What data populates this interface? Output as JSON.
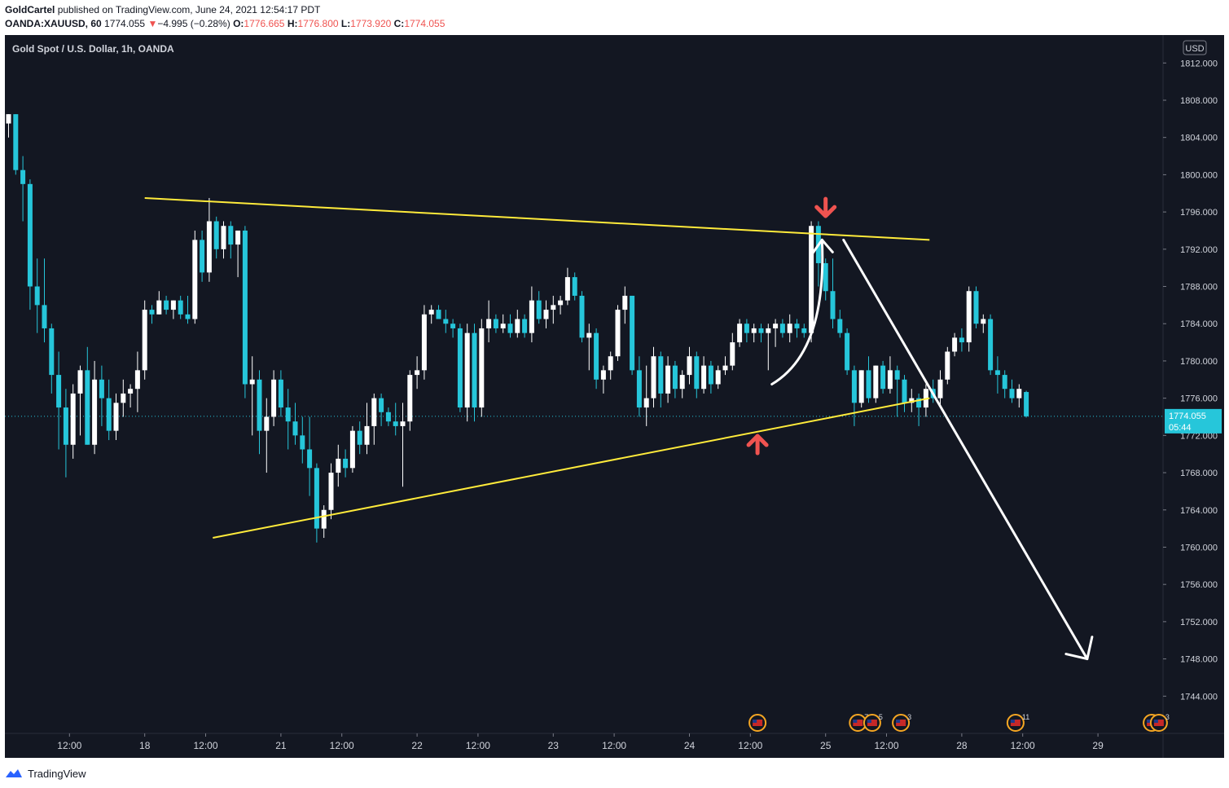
{
  "header": {
    "author": "GoldCartel",
    "published_text": "published on TradingView.com, June 24, 2021 12:54:17 PDT",
    "symbol": "OANDA:XAUUSD, 60",
    "last": "1774.055",
    "change_arrow": "▼",
    "change": "−4.995 (−0.28%)",
    "o_label": "O:",
    "o_value": "1776.665",
    "h_label": "H:",
    "h_value": "1776.800",
    "l_label": "L:",
    "l_value": "1773.920",
    "c_label": "C:",
    "c_value": "1774.055"
  },
  "chart_title": "Gold Spot / U.S. Dollar, 1h, OANDA",
  "currency_label": "USD",
  "price_tag": {
    "price": "1774.055",
    "countdown": "05:44",
    "value": 1774.055
  },
  "footer": {
    "brand": "TradingView"
  },
  "colors": {
    "background": "#131722",
    "up_candle": "#ffffff",
    "down_candle": "#26c6da",
    "trendline": "#ffeb3b",
    "arrow_marker": "#ef5350",
    "projection_arrow": "#ffffff",
    "price_tag_bg": "#26c6da",
    "event_icon_ring": "#f5a623"
  },
  "chart_data": {
    "type": "candlestick",
    "title": "Gold Spot / U.S. Dollar, 1h, OANDA",
    "ylim": [
      1740,
      1815
    ],
    "y_ticks": [
      1812,
      1808,
      1804,
      1800,
      1796,
      1792,
      1788,
      1784,
      1780,
      1776,
      1772,
      1768,
      1764,
      1760,
      1756,
      1752,
      1748,
      1744
    ],
    "y_tick_labels": [
      "1812.000",
      "1808.000",
      "1804.000",
      "1800.000",
      "1796.000",
      "1792.000",
      "1788.000",
      "1784.000",
      "1780.000",
      "1776.000",
      "1772.000",
      "1768.000",
      "1764.000",
      "1760.000",
      "1756.000",
      "1752.000",
      "1748.000",
      "1744.000"
    ],
    "x_ticks": [
      "12:00",
      "18",
      "12:00",
      "21",
      "12:00",
      "22",
      "12:00",
      "23",
      "12:00",
      "24",
      "12:00",
      "25",
      "12:00",
      "28",
      "12:00",
      "29"
    ],
    "x_tick_index": [
      8.5,
      19,
      27.5,
      38,
      46.5,
      57,
      65.5,
      76,
      84.5,
      95,
      103.5,
      114,
      122.5,
      133,
      141.5,
      152
    ],
    "bar_count_visible": 162,
    "candles": [
      {
        "o": 1805.5,
        "h": 1806.5,
        "l": 1804.0,
        "c": 1806.5
      },
      {
        "o": 1806.5,
        "h": 1806.5,
        "l": 1800.0,
        "c": 1800.5
      },
      {
        "o": 1800.5,
        "h": 1802.0,
        "l": 1795.0,
        "c": 1799.0
      },
      {
        "o": 1799.0,
        "h": 1799.5,
        "l": 1785.5,
        "c": 1788.0
      },
      {
        "o": 1788.0,
        "h": 1791.0,
        "l": 1783.0,
        "c": 1786.0
      },
      {
        "o": 1786.0,
        "h": 1791.0,
        "l": 1782.0,
        "c": 1783.5
      },
      {
        "o": 1783.5,
        "h": 1784.0,
        "l": 1776.5,
        "c": 1778.5
      },
      {
        "o": 1778.5,
        "h": 1781.0,
        "l": 1770.5,
        "c": 1775.0
      },
      {
        "o": 1775.0,
        "h": 1777.0,
        "l": 1767.5,
        "c": 1771.0
      },
      {
        "o": 1771.0,
        "h": 1777.5,
        "l": 1769.5,
        "c": 1776.5
      },
      {
        "o": 1776.5,
        "h": 1779.5,
        "l": 1772.0,
        "c": 1779.0
      },
      {
        "o": 1779.0,
        "h": 1781.5,
        "l": 1771.0,
        "c": 1771.0
      },
      {
        "o": 1771.0,
        "h": 1780.0,
        "l": 1770.0,
        "c": 1778.0
      },
      {
        "o": 1778.0,
        "h": 1779.5,
        "l": 1773.0,
        "c": 1776.0
      },
      {
        "o": 1776.0,
        "h": 1778.0,
        "l": 1771.5,
        "c": 1772.5
      },
      {
        "o": 1772.5,
        "h": 1776.5,
        "l": 1771.5,
        "c": 1775.5
      },
      {
        "o": 1775.5,
        "h": 1778.0,
        "l": 1774.0,
        "c": 1776.5
      },
      {
        "o": 1776.5,
        "h": 1777.5,
        "l": 1775.0,
        "c": 1777.0
      },
      {
        "o": 1777.0,
        "h": 1781.0,
        "l": 1774.5,
        "c": 1779.0
      },
      {
        "o": 1779.0,
        "h": 1786.5,
        "l": 1778.0,
        "c": 1785.5
      },
      {
        "o": 1785.5,
        "h": 1786.0,
        "l": 1784.0,
        "c": 1785.0
      },
      {
        "o": 1785.0,
        "h": 1787.5,
        "l": 1785.0,
        "c": 1786.5
      },
      {
        "o": 1786.5,
        "h": 1787.0,
        "l": 1785.0,
        "c": 1785.5
      },
      {
        "o": 1785.5,
        "h": 1786.5,
        "l": 1784.5,
        "c": 1786.5
      },
      {
        "o": 1786.5,
        "h": 1787.0,
        "l": 1784.5,
        "c": 1785.0
      },
      {
        "o": 1785.0,
        "h": 1787.0,
        "l": 1784.0,
        "c": 1784.5
      },
      {
        "o": 1784.5,
        "h": 1794.0,
        "l": 1784.0,
        "c": 1793.0
      },
      {
        "o": 1793.0,
        "h": 1794.0,
        "l": 1788.5,
        "c": 1789.5
      },
      {
        "o": 1789.5,
        "h": 1797.5,
        "l": 1788.5,
        "c": 1795.0
      },
      {
        "o": 1795.0,
        "h": 1795.5,
        "l": 1791.0,
        "c": 1792.0
      },
      {
        "o": 1792.0,
        "h": 1795.0,
        "l": 1791.0,
        "c": 1794.5
      },
      {
        "o": 1794.5,
        "h": 1795.0,
        "l": 1791.0,
        "c": 1792.5
      },
      {
        "o": 1792.5,
        "h": 1794.0,
        "l": 1789.0,
        "c": 1794.0
      },
      {
        "o": 1794.0,
        "h": 1794.5,
        "l": 1776.0,
        "c": 1777.5
      },
      {
        "o": 1777.5,
        "h": 1780.5,
        "l": 1772.0,
        "c": 1778.0
      },
      {
        "o": 1778.0,
        "h": 1779.0,
        "l": 1770.0,
        "c": 1772.5
      },
      {
        "o": 1772.5,
        "h": 1776.0,
        "l": 1768.0,
        "c": 1774.0
      },
      {
        "o": 1774.0,
        "h": 1779.0,
        "l": 1773.0,
        "c": 1778.0
      },
      {
        "o": 1778.0,
        "h": 1779.0,
        "l": 1774.0,
        "c": 1775.0
      },
      {
        "o": 1775.0,
        "h": 1777.0,
        "l": 1770.5,
        "c": 1773.5
      },
      {
        "o": 1773.5,
        "h": 1775.5,
        "l": 1771.0,
        "c": 1772.0
      },
      {
        "o": 1772.0,
        "h": 1774.0,
        "l": 1769.0,
        "c": 1770.5
      },
      {
        "o": 1770.5,
        "h": 1774.0,
        "l": 1765.5,
        "c": 1768.5
      },
      {
        "o": 1768.5,
        "h": 1769.0,
        "l": 1760.5,
        "c": 1762.0
      },
      {
        "o": 1762.0,
        "h": 1764.5,
        "l": 1761.0,
        "c": 1764.0
      },
      {
        "o": 1764.0,
        "h": 1769.0,
        "l": 1763.0,
        "c": 1768.0
      },
      {
        "o": 1768.0,
        "h": 1771.0,
        "l": 1766.5,
        "c": 1769.5
      },
      {
        "o": 1769.5,
        "h": 1770.5,
        "l": 1767.5,
        "c": 1768.5
      },
      {
        "o": 1768.5,
        "h": 1773.0,
        "l": 1768.0,
        "c": 1772.5
      },
      {
        "o": 1772.5,
        "h": 1773.5,
        "l": 1770.0,
        "c": 1771.0
      },
      {
        "o": 1771.0,
        "h": 1775.5,
        "l": 1770.0,
        "c": 1773.0
      },
      {
        "o": 1773.0,
        "h": 1776.5,
        "l": 1771.0,
        "c": 1776.0
      },
      {
        "o": 1776.0,
        "h": 1776.5,
        "l": 1773.0,
        "c": 1774.5
      },
      {
        "o": 1774.5,
        "h": 1775.0,
        "l": 1773.0,
        "c": 1773.5
      },
      {
        "o": 1773.5,
        "h": 1775.5,
        "l": 1772.0,
        "c": 1773.0
      },
      {
        "o": 1773.0,
        "h": 1775.5,
        "l": 1766.5,
        "c": 1773.5
      },
      {
        "o": 1773.5,
        "h": 1779.0,
        "l": 1772.5,
        "c": 1778.5
      },
      {
        "o": 1778.5,
        "h": 1780.5,
        "l": 1777.0,
        "c": 1779.0
      },
      {
        "o": 1779.0,
        "h": 1786.0,
        "l": 1778.0,
        "c": 1785.0
      },
      {
        "o": 1785.0,
        "h": 1786.0,
        "l": 1784.0,
        "c": 1785.5
      },
      {
        "o": 1785.5,
        "h": 1786.0,
        "l": 1784.5,
        "c": 1784.5
      },
      {
        "o": 1784.5,
        "h": 1785.5,
        "l": 1783.0,
        "c": 1784.0
      },
      {
        "o": 1784.0,
        "h": 1784.5,
        "l": 1782.5,
        "c": 1783.5
      },
      {
        "o": 1783.5,
        "h": 1784.0,
        "l": 1774.5,
        "c": 1775.0
      },
      {
        "o": 1775.0,
        "h": 1784.0,
        "l": 1773.5,
        "c": 1783.0
      },
      {
        "o": 1783.0,
        "h": 1784.0,
        "l": 1773.5,
        "c": 1775.0
      },
      {
        "o": 1775.0,
        "h": 1784.5,
        "l": 1774.0,
        "c": 1783.5
      },
      {
        "o": 1783.5,
        "h": 1786.5,
        "l": 1782.0,
        "c": 1784.5
      },
      {
        "o": 1784.5,
        "h": 1785.0,
        "l": 1783.0,
        "c": 1783.5
      },
      {
        "o": 1783.5,
        "h": 1785.0,
        "l": 1783.0,
        "c": 1784.0
      },
      {
        "o": 1784.0,
        "h": 1785.0,
        "l": 1782.5,
        "c": 1783.0
      },
      {
        "o": 1783.0,
        "h": 1785.5,
        "l": 1782.5,
        "c": 1784.5
      },
      {
        "o": 1784.5,
        "h": 1785.0,
        "l": 1782.5,
        "c": 1783.0
      },
      {
        "o": 1783.0,
        "h": 1788.0,
        "l": 1782.0,
        "c": 1786.5
      },
      {
        "o": 1786.5,
        "h": 1787.5,
        "l": 1784.0,
        "c": 1784.5
      },
      {
        "o": 1784.5,
        "h": 1786.5,
        "l": 1783.5,
        "c": 1785.5
      },
      {
        "o": 1785.5,
        "h": 1787.0,
        "l": 1784.0,
        "c": 1786.0
      },
      {
        "o": 1786.0,
        "h": 1787.0,
        "l": 1785.0,
        "c": 1786.5
      },
      {
        "o": 1786.5,
        "h": 1790.0,
        "l": 1786.0,
        "c": 1789.0
      },
      {
        "o": 1789.0,
        "h": 1789.5,
        "l": 1786.5,
        "c": 1787.0
      },
      {
        "o": 1787.0,
        "h": 1787.5,
        "l": 1782.0,
        "c": 1782.5
      },
      {
        "o": 1782.5,
        "h": 1784.0,
        "l": 1779.0,
        "c": 1783.0
      },
      {
        "o": 1783.0,
        "h": 1783.5,
        "l": 1777.0,
        "c": 1778.0
      },
      {
        "o": 1778.0,
        "h": 1779.5,
        "l": 1776.5,
        "c": 1779.0
      },
      {
        "o": 1779.0,
        "h": 1781.0,
        "l": 1778.0,
        "c": 1780.5
      },
      {
        "o": 1780.5,
        "h": 1786.0,
        "l": 1780.0,
        "c": 1785.5
      },
      {
        "o": 1785.5,
        "h": 1788.0,
        "l": 1784.0,
        "c": 1787.0
      },
      {
        "o": 1787.0,
        "h": 1787.0,
        "l": 1778.5,
        "c": 1779.0
      },
      {
        "o": 1779.0,
        "h": 1780.5,
        "l": 1774.0,
        "c": 1775.0
      },
      {
        "o": 1775.0,
        "h": 1779.5,
        "l": 1773.0,
        "c": 1776.0
      },
      {
        "o": 1776.0,
        "h": 1781.5,
        "l": 1775.0,
        "c": 1780.5
      },
      {
        "o": 1780.5,
        "h": 1781.0,
        "l": 1775.0,
        "c": 1776.5
      },
      {
        "o": 1776.5,
        "h": 1780.5,
        "l": 1775.5,
        "c": 1779.5
      },
      {
        "o": 1779.5,
        "h": 1780.0,
        "l": 1776.0,
        "c": 1777.0
      },
      {
        "o": 1777.0,
        "h": 1779.0,
        "l": 1776.0,
        "c": 1778.5
      },
      {
        "o": 1778.5,
        "h": 1781.5,
        "l": 1777.5,
        "c": 1780.5
      },
      {
        "o": 1780.5,
        "h": 1781.0,
        "l": 1776.0,
        "c": 1777.0
      },
      {
        "o": 1777.0,
        "h": 1780.5,
        "l": 1776.5,
        "c": 1779.5
      },
      {
        "o": 1779.5,
        "h": 1780.0,
        "l": 1776.5,
        "c": 1777.5
      },
      {
        "o": 1777.5,
        "h": 1779.5,
        "l": 1777.0,
        "c": 1779.0
      },
      {
        "o": 1779.0,
        "h": 1780.5,
        "l": 1778.5,
        "c": 1779.5
      },
      {
        "o": 1779.5,
        "h": 1783.0,
        "l": 1779.0,
        "c": 1782.0
      },
      {
        "o": 1782.0,
        "h": 1784.5,
        "l": 1781.5,
        "c": 1784.0
      },
      {
        "o": 1784.0,
        "h": 1784.5,
        "l": 1782.0,
        "c": 1783.0
      },
      {
        "o": 1783.0,
        "h": 1784.0,
        "l": 1782.0,
        "c": 1783.5
      },
      {
        "o": 1783.5,
        "h": 1784.0,
        "l": 1782.0,
        "c": 1783.0
      },
      {
        "o": 1783.0,
        "h": 1784.0,
        "l": 1779.0,
        "c": 1783.5
      },
      {
        "o": 1783.5,
        "h": 1784.5,
        "l": 1781.5,
        "c": 1784.0
      },
      {
        "o": 1784.0,
        "h": 1784.5,
        "l": 1782.5,
        "c": 1783.0
      },
      {
        "o": 1783.0,
        "h": 1785.0,
        "l": 1782.0,
        "c": 1784.0
      },
      {
        "o": 1784.0,
        "h": 1784.5,
        "l": 1782.5,
        "c": 1783.5
      },
      {
        "o": 1783.5,
        "h": 1784.0,
        "l": 1782.5,
        "c": 1783.0
      },
      {
        "o": 1783.0,
        "h": 1795.0,
        "l": 1782.0,
        "c": 1794.5
      },
      {
        "o": 1794.5,
        "h": 1795.0,
        "l": 1788.0,
        "c": 1790.5
      },
      {
        "o": 1790.5,
        "h": 1791.0,
        "l": 1786.5,
        "c": 1787.5
      },
      {
        "o": 1787.5,
        "h": 1791.0,
        "l": 1783.5,
        "c": 1784.5
      },
      {
        "o": 1784.5,
        "h": 1785.5,
        "l": 1782.5,
        "c": 1783.0
      },
      {
        "o": 1783.0,
        "h": 1783.5,
        "l": 1778.5,
        "c": 1779.0
      },
      {
        "o": 1779.0,
        "h": 1779.5,
        "l": 1773.0,
        "c": 1775.5
      },
      {
        "o": 1775.5,
        "h": 1779.0,
        "l": 1775.0,
        "c": 1779.0
      },
      {
        "o": 1779.0,
        "h": 1780.5,
        "l": 1775.5,
        "c": 1776.0
      },
      {
        "o": 1776.0,
        "h": 1779.5,
        "l": 1775.5,
        "c": 1779.5
      },
      {
        "o": 1779.5,
        "h": 1780.0,
        "l": 1776.5,
        "c": 1777.0
      },
      {
        "o": 1777.0,
        "h": 1780.5,
        "l": 1776.5,
        "c": 1779.0
      },
      {
        "o": 1779.0,
        "h": 1779.5,
        "l": 1774.0,
        "c": 1778.0
      },
      {
        "o": 1778.0,
        "h": 1778.5,
        "l": 1774.5,
        "c": 1775.5
      },
      {
        "o": 1775.5,
        "h": 1777.0,
        "l": 1774.5,
        "c": 1776.0
      },
      {
        "o": 1776.0,
        "h": 1776.5,
        "l": 1773.0,
        "c": 1775.0
      },
      {
        "o": 1775.0,
        "h": 1777.5,
        "l": 1774.0,
        "c": 1777.0
      },
      {
        "o": 1777.0,
        "h": 1778.0,
        "l": 1775.5,
        "c": 1776.0
      },
      {
        "o": 1776.0,
        "h": 1779.0,
        "l": 1775.0,
        "c": 1778.0
      },
      {
        "o": 1778.0,
        "h": 1781.5,
        "l": 1777.5,
        "c": 1781.0
      },
      {
        "o": 1781.0,
        "h": 1783.0,
        "l": 1780.5,
        "c": 1782.5
      },
      {
        "o": 1782.5,
        "h": 1783.5,
        "l": 1781.0,
        "c": 1782.0
      },
      {
        "o": 1782.0,
        "h": 1788.0,
        "l": 1781.0,
        "c": 1787.5
      },
      {
        "o": 1787.5,
        "h": 1788.0,
        "l": 1783.5,
        "c": 1784.0
      },
      {
        "o": 1784.0,
        "h": 1785.0,
        "l": 1783.0,
        "c": 1784.5
      },
      {
        "o": 1784.5,
        "h": 1785.0,
        "l": 1778.5,
        "c": 1779.0
      },
      {
        "o": 1779.0,
        "h": 1780.5,
        "l": 1776.5,
        "c": 1778.5
      },
      {
        "o": 1778.5,
        "h": 1779.0,
        "l": 1776.0,
        "c": 1777.0
      },
      {
        "o": 1777.0,
        "h": 1778.0,
        "l": 1775.5,
        "c": 1776.0
      },
      {
        "o": 1776.0,
        "h": 1777.5,
        "l": 1775.0,
        "c": 1777.0
      },
      {
        "o": 1776.665,
        "h": 1776.8,
        "l": 1773.92,
        "c": 1774.055
      }
    ],
    "drawings": {
      "upper_trendline": [
        [
          19,
          1797.5
        ],
        [
          128.5,
          1793.0
        ]
      ],
      "lower_trendline": [
        [
          28.5,
          1761.0
        ],
        [
          128.5,
          1776.0
        ]
      ],
      "down_marker": [
        114,
        1796.0
      ],
      "up_marker": [
        104.5,
        1771.5
      ],
      "curved_arrow_from": [
        106.5,
        1777.5
      ],
      "curved_arrow_to": [
        113.5,
        1793.0
      ],
      "projection_arrow_from": [
        116.5,
        1793.0
      ],
      "projection_arrow_to": [
        150.5,
        1748.0
      ]
    },
    "event_markers": [
      {
        "index": 104.5,
        "label": ""
      },
      {
        "index": 118.5,
        "label": "7"
      },
      {
        "index": 120.5,
        "label": "5"
      },
      {
        "index": 124.5,
        "label": "3"
      },
      {
        "index": 140.5,
        "label": "11"
      },
      {
        "index": 159.5,
        "label": "6"
      },
      {
        "index": 160.5,
        "label": "3"
      }
    ]
  }
}
